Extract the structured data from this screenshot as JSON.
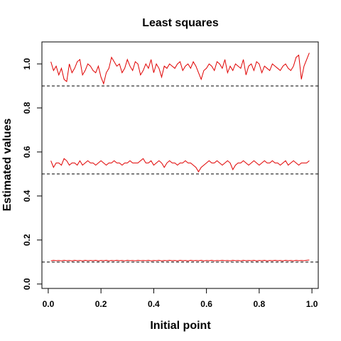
{
  "chart_data": {
    "type": "line",
    "title": "Least squares",
    "xlabel": "Initial point",
    "ylabel": "Estimated values",
    "xlim": [
      -0.024,
      1.024
    ],
    "ylim": [
      -0.02,
      1.1
    ],
    "x_ticks": [
      0.0,
      0.2,
      0.4,
      0.6,
      0.8,
      1.0
    ],
    "x_tick_labels": [
      "0.0",
      "0.2",
      "0.4",
      "0.6",
      "0.8",
      "1.0"
    ],
    "y_ticks": [
      0.0,
      0.2,
      0.4,
      0.6,
      0.8,
      1.0
    ],
    "y_tick_labels": [
      "0.0",
      "0.2",
      "0.4",
      "0.6",
      "0.8",
      "1.0"
    ],
    "reference_lines": [
      0.9,
      0.5,
      0.1
    ],
    "grid": false,
    "legend": "none",
    "colors": {
      "series": "#e00000",
      "reference": "#000000"
    },
    "x": [
      0.01,
      0.02,
      0.03,
      0.04,
      0.05,
      0.06,
      0.07,
      0.08,
      0.09,
      0.1,
      0.11,
      0.12,
      0.13,
      0.14,
      0.15,
      0.16,
      0.17,
      0.18,
      0.19,
      0.2,
      0.21,
      0.22,
      0.23,
      0.24,
      0.25,
      0.26,
      0.27,
      0.28,
      0.29,
      0.3,
      0.31,
      0.32,
      0.33,
      0.34,
      0.35,
      0.36,
      0.37,
      0.38,
      0.39,
      0.4,
      0.41,
      0.42,
      0.43,
      0.44,
      0.45,
      0.46,
      0.47,
      0.48,
      0.49,
      0.5,
      0.51,
      0.52,
      0.53,
      0.54,
      0.55,
      0.56,
      0.57,
      0.58,
      0.59,
      0.6,
      0.61,
      0.62,
      0.63,
      0.64,
      0.65,
      0.66,
      0.67,
      0.68,
      0.69,
      0.7,
      0.71,
      0.72,
      0.73,
      0.74,
      0.75,
      0.76,
      0.77,
      0.78,
      0.79,
      0.8,
      0.81,
      0.82,
      0.83,
      0.84,
      0.85,
      0.86,
      0.87,
      0.88,
      0.89,
      0.9,
      0.91,
      0.92,
      0.93,
      0.94,
      0.95,
      0.96,
      0.97,
      0.98,
      0.99
    ],
    "series": [
      {
        "values": [
          1.01,
          0.97,
          0.99,
          0.95,
          0.98,
          0.93,
          0.92,
          1.0,
          0.96,
          0.98,
          1.01,
          1.02,
          0.95,
          0.97,
          1.0,
          0.99,
          0.97,
          0.96,
          0.99,
          0.94,
          0.91,
          0.96,
          0.98,
          1.03,
          1.01,
          0.99,
          1.0,
          0.96,
          0.98,
          1.02,
          0.99,
          0.97,
          1.01,
          1.0,
          0.95,
          0.97,
          1.0,
          0.98,
          1.02,
          0.96,
          1.0,
          0.98,
          0.94,
          0.99,
          0.98,
          1.0,
          0.99,
          0.98,
          1.0,
          1.01,
          0.97,
          0.99,
          1.0,
          0.98,
          1.01,
          0.99,
          0.96,
          0.93,
          0.97,
          0.98,
          1.0,
          0.99,
          0.97,
          1.01,
          1.0,
          0.98,
          1.02,
          0.96,
          0.99,
          0.97,
          1.0,
          0.99,
          0.98,
          1.02,
          0.95,
          0.99,
          1.0,
          0.97,
          1.01,
          1.0,
          0.96,
          0.99,
          0.98,
          0.97,
          1.0,
          0.99,
          0.98,
          0.97,
          0.99,
          1.0,
          0.98,
          0.97,
          0.99,
          1.03,
          1.04,
          0.93,
          0.99,
          1.02,
          1.05
        ]
      },
      {
        "values": [
          0.56,
          0.53,
          0.55,
          0.55,
          0.54,
          0.57,
          0.56,
          0.54,
          0.55,
          0.55,
          0.54,
          0.56,
          0.54,
          0.55,
          0.56,
          0.55,
          0.55,
          0.54,
          0.55,
          0.56,
          0.55,
          0.54,
          0.55,
          0.55,
          0.56,
          0.55,
          0.55,
          0.54,
          0.55,
          0.55,
          0.56,
          0.55,
          0.55,
          0.55,
          0.56,
          0.57,
          0.55,
          0.55,
          0.56,
          0.54,
          0.55,
          0.56,
          0.55,
          0.53,
          0.55,
          0.56,
          0.55,
          0.55,
          0.54,
          0.55,
          0.55,
          0.56,
          0.55,
          0.55,
          0.54,
          0.53,
          0.51,
          0.53,
          0.54,
          0.55,
          0.56,
          0.55,
          0.55,
          0.56,
          0.55,
          0.54,
          0.55,
          0.56,
          0.55,
          0.52,
          0.54,
          0.55,
          0.55,
          0.56,
          0.55,
          0.54,
          0.55,
          0.56,
          0.55,
          0.54,
          0.55,
          0.56,
          0.55,
          0.55,
          0.56,
          0.55,
          0.55,
          0.54,
          0.55,
          0.56,
          0.54,
          0.55,
          0.56,
          0.55,
          0.54,
          0.55,
          0.55,
          0.55,
          0.56
        ]
      },
      {
        "values": [
          0.105,
          0.108,
          0.106,
          0.107,
          0.105,
          0.108,
          0.106,
          0.107,
          0.105,
          0.108,
          0.106,
          0.107,
          0.105,
          0.108,
          0.106,
          0.107,
          0.106,
          0.108,
          0.105,
          0.107,
          0.106,
          0.108,
          0.105,
          0.107,
          0.106,
          0.108,
          0.106,
          0.107,
          0.105,
          0.108,
          0.106,
          0.107,
          0.105,
          0.108,
          0.106,
          0.107,
          0.106,
          0.108,
          0.105,
          0.107,
          0.106,
          0.108,
          0.105,
          0.107,
          0.106,
          0.108,
          0.106,
          0.107,
          0.105,
          0.108,
          0.106,
          0.107,
          0.105,
          0.108,
          0.106,
          0.107,
          0.106,
          0.108,
          0.105,
          0.107,
          0.106,
          0.108,
          0.105,
          0.107,
          0.106,
          0.108,
          0.106,
          0.107,
          0.105,
          0.108,
          0.106,
          0.107,
          0.105,
          0.108,
          0.106,
          0.107,
          0.106,
          0.108,
          0.105,
          0.107,
          0.106,
          0.108,
          0.105,
          0.107,
          0.106,
          0.108,
          0.106,
          0.107,
          0.105,
          0.108,
          0.106,
          0.107,
          0.105,
          0.108,
          0.106,
          0.107,
          0.106,
          0.108,
          0.109
        ]
      }
    ]
  }
}
